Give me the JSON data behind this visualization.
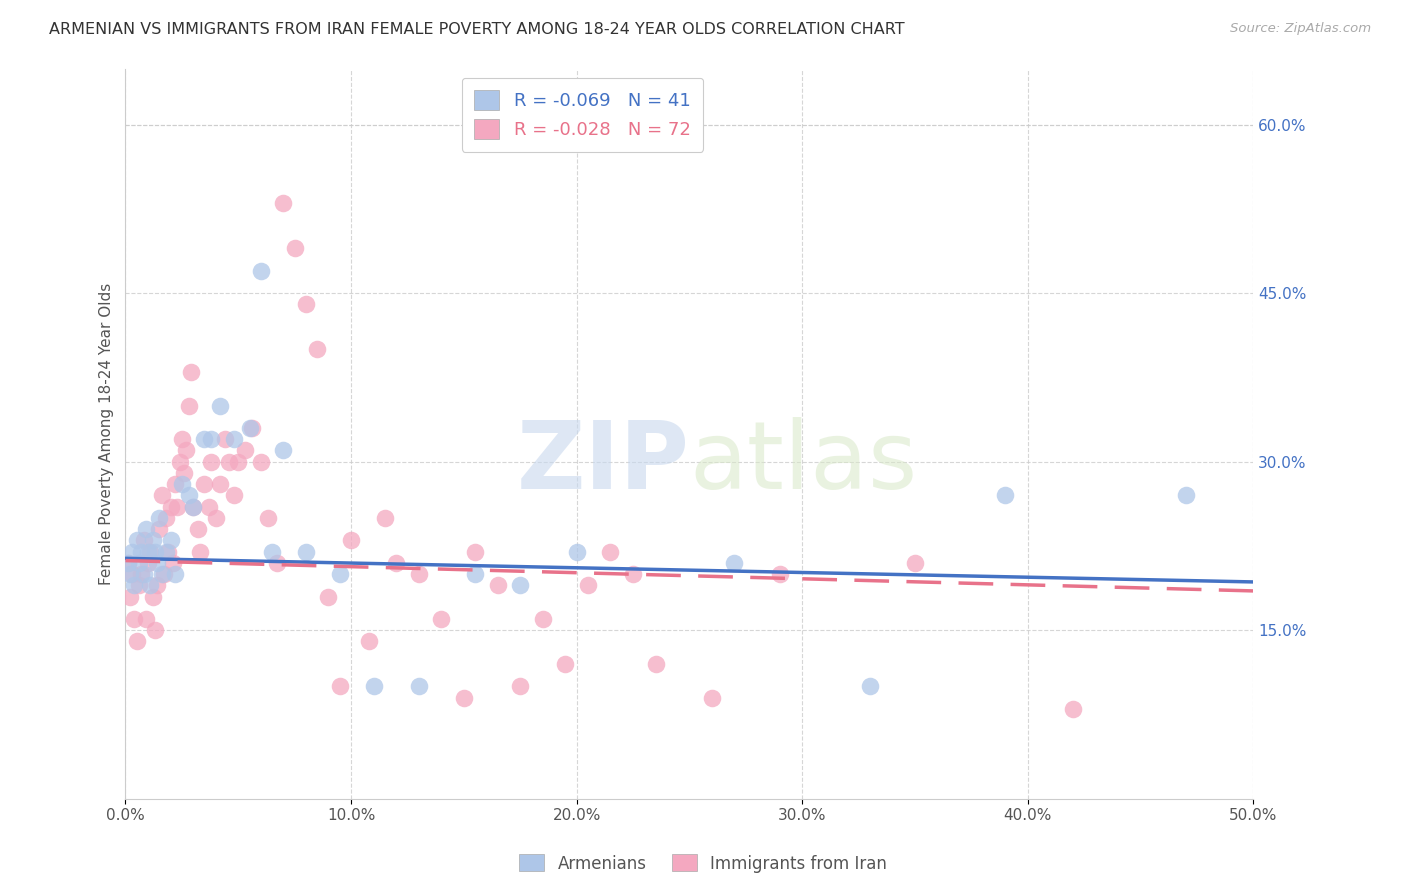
{
  "title": "ARMENIAN VS IMMIGRANTS FROM IRAN FEMALE POVERTY AMONG 18-24 YEAR OLDS CORRELATION CHART",
  "source": "Source: ZipAtlas.com",
  "ylabel": "Female Poverty Among 18-24 Year Olds",
  "xlim": [
    0.0,
    0.5
  ],
  "ylim": [
    0.0,
    0.65
  ],
  "xticks": [
    0.0,
    0.1,
    0.2,
    0.3,
    0.4,
    0.5
  ],
  "xticklabels": [
    "0.0%",
    "10.0%",
    "20.0%",
    "30.0%",
    "40.0%",
    "50.0%"
  ],
  "yticks_right": [
    0.15,
    0.3,
    0.45,
    0.6
  ],
  "yticklabels_right": [
    "15.0%",
    "30.0%",
    "45.0%",
    "60.0%"
  ],
  "grid_color": "#cccccc",
  "background_color": "#ffffff",
  "legend_R_armenian": "R = -0.069",
  "legend_N_armenian": "N = 41",
  "legend_R_iran": "R = -0.028",
  "legend_N_iran": "N = 72",
  "armenian_color": "#aec6e8",
  "iran_color": "#f4a8c0",
  "armenian_line_color": "#4472c4",
  "iran_line_color": "#e8728a",
  "watermark_zip": "ZIP",
  "watermark_atlas": "atlas",
  "legend_label_armenian": "Armenians",
  "legend_label_iran": "Immigrants from Iran",
  "armenian_x": [
    0.001,
    0.002,
    0.003,
    0.004,
    0.005,
    0.006,
    0.007,
    0.008,
    0.009,
    0.01,
    0.011,
    0.012,
    0.013,
    0.014,
    0.015,
    0.016,
    0.018,
    0.02,
    0.022,
    0.025,
    0.028,
    0.03,
    0.035,
    0.038,
    0.042,
    0.048,
    0.055,
    0.06,
    0.065,
    0.07,
    0.08,
    0.095,
    0.11,
    0.13,
    0.155,
    0.175,
    0.2,
    0.27,
    0.33,
    0.39,
    0.47
  ],
  "armenian_y": [
    0.21,
    0.2,
    0.22,
    0.19,
    0.23,
    0.21,
    0.22,
    0.2,
    0.24,
    0.22,
    0.19,
    0.23,
    0.22,
    0.21,
    0.25,
    0.2,
    0.22,
    0.23,
    0.2,
    0.28,
    0.27,
    0.26,
    0.32,
    0.32,
    0.35,
    0.32,
    0.33,
    0.47,
    0.22,
    0.31,
    0.22,
    0.2,
    0.1,
    0.1,
    0.2,
    0.19,
    0.22,
    0.21,
    0.1,
    0.27,
    0.27
  ],
  "iran_x": [
    0.001,
    0.002,
    0.003,
    0.004,
    0.005,
    0.006,
    0.007,
    0.008,
    0.009,
    0.01,
    0.011,
    0.012,
    0.013,
    0.014,
    0.015,
    0.016,
    0.017,
    0.018,
    0.019,
    0.02,
    0.021,
    0.022,
    0.023,
    0.024,
    0.025,
    0.026,
    0.027,
    0.028,
    0.029,
    0.03,
    0.032,
    0.033,
    0.035,
    0.037,
    0.038,
    0.04,
    0.042,
    0.044,
    0.046,
    0.048,
    0.05,
    0.053,
    0.056,
    0.06,
    0.063,
    0.067,
    0.07,
    0.075,
    0.08,
    0.085,
    0.09,
    0.095,
    0.1,
    0.108,
    0.115,
    0.12,
    0.13,
    0.14,
    0.15,
    0.155,
    0.165,
    0.175,
    0.185,
    0.195,
    0.205,
    0.215,
    0.225,
    0.235,
    0.26,
    0.29,
    0.35,
    0.42
  ],
  "iran_y": [
    0.21,
    0.18,
    0.2,
    0.16,
    0.14,
    0.19,
    0.2,
    0.23,
    0.16,
    0.21,
    0.22,
    0.18,
    0.15,
    0.19,
    0.24,
    0.27,
    0.2,
    0.25,
    0.22,
    0.26,
    0.21,
    0.28,
    0.26,
    0.3,
    0.32,
    0.29,
    0.31,
    0.35,
    0.38,
    0.26,
    0.24,
    0.22,
    0.28,
    0.26,
    0.3,
    0.25,
    0.28,
    0.32,
    0.3,
    0.27,
    0.3,
    0.31,
    0.33,
    0.3,
    0.25,
    0.21,
    0.53,
    0.49,
    0.44,
    0.4,
    0.18,
    0.1,
    0.23,
    0.14,
    0.25,
    0.21,
    0.2,
    0.16,
    0.09,
    0.22,
    0.19,
    0.1,
    0.16,
    0.12,
    0.19,
    0.22,
    0.2,
    0.12,
    0.09,
    0.2,
    0.21,
    0.08
  ],
  "trend_arm_x0": 0.0,
  "trend_arm_y0": 0.214,
  "trend_arm_x1": 0.5,
  "trend_arm_y1": 0.193,
  "trend_iran_x0": 0.0,
  "trend_iran_y0": 0.212,
  "trend_iran_x1": 0.5,
  "trend_iran_y1": 0.185
}
